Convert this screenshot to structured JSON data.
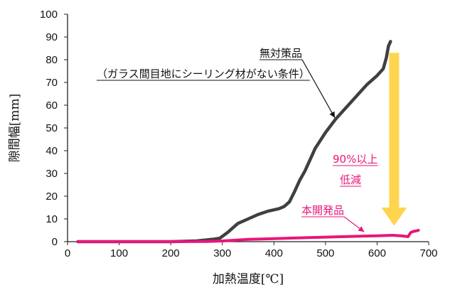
{
  "chart_data": {
    "type": "line",
    "xlabel": "加熱温度[℃]",
    "ylabel": "隙間幅[mm]",
    "xlim": [
      0,
      700
    ],
    "ylim": [
      0,
      100
    ],
    "xticks": [
      "0",
      "100",
      "200",
      "300",
      "400",
      "500",
      "600",
      "700"
    ],
    "yticks": [
      "0",
      "10",
      "20",
      "30",
      "40",
      "50",
      "60",
      "70",
      "80",
      "90",
      "100"
    ],
    "grid": false,
    "series": [
      {
        "name": "無対策品",
        "subtitle": "（ガラス間目地にシーリング材がない条件）",
        "color": "#404040",
        "x": [
          20,
          100,
          200,
          250,
          280,
          295,
          310,
          320,
          330,
          350,
          370,
          390,
          410,
          420,
          430,
          440,
          450,
          460,
          470,
          480,
          500,
          520,
          540,
          560,
          580,
          600,
          612,
          618,
          622,
          626
        ],
        "y": [
          0,
          0,
          0,
          0.3,
          1,
          1.5,
          4,
          6,
          8,
          10,
          12,
          13.5,
          14.5,
          15.5,
          17.5,
          22,
          27,
          31,
          36,
          41,
          48,
          54,
          59,
          64,
          69,
          73,
          76,
          81,
          86,
          88
        ]
      },
      {
        "name": "本開発品",
        "color": "#e8167a",
        "x": [
          20,
          100,
          200,
          270,
          300,
          320,
          350,
          400,
          450,
          500,
          550,
          600,
          630,
          650,
          660,
          665,
          670,
          675,
          680
        ],
        "y": [
          0,
          0,
          0,
          0.1,
          0.3,
          0.6,
          1,
          1.3,
          1.7,
          2,
          2.3,
          2.6,
          2.8,
          2.5,
          2.2,
          4,
          4.5,
          4.7,
          5
        ]
      }
    ],
    "annotations": [
      {
        "text": "90%以上",
        "color": "#e8167a"
      },
      {
        "text": "低減",
        "color": "#e8167a"
      }
    ],
    "arrow_color": "#ffd54f"
  }
}
